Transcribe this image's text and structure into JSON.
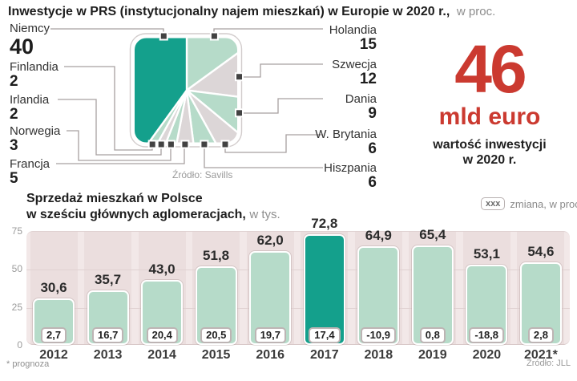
{
  "accent_colors": {
    "teal": "#14a08c",
    "light_green": "#b6dbc9",
    "slice_gray": "#dcd6d7",
    "red": "#cb3a30",
    "plot_background": "#f2e8e8"
  },
  "top_chart": {
    "title": "Inwestycje w PRS (instytucjonalny najem mieszkań) w Europie w 2020 r.,",
    "title_suffix": "w proc.",
    "source": "Źródło: Savills"
  },
  "highlight": {
    "value": "46",
    "unit": "mld euro",
    "caption_line1": "wartość inwestycji",
    "caption_line2": "w 2020 r."
  },
  "bottom_chart": {
    "title_line1": "Sprzedaż mieszkań w Polsce",
    "title_line2": "w sześciu głównych aglomeracjach,",
    "title_suffix": "w tys.",
    "legend_badge": "xxx",
    "legend_label": "zmiana, w proc.",
    "footnote": "* prognoza",
    "source": "Źródło: JLL"
  },
  "chart_data": [
    {
      "type": "pie",
      "title": "Inwestycje w PRS (instytucjonalny najem mieszkań) w Europie w 2020 r.",
      "unit": "w proc.",
      "slices": [
        {
          "label": "Holandia",
          "value": 15,
          "color": "#b6dbc9",
          "side": "right"
        },
        {
          "label": "Szwecja",
          "value": 12,
          "color": "#dcd6d7",
          "side": "right"
        },
        {
          "label": "Dania",
          "value": 9,
          "color": "#b6dbc9",
          "side": "right"
        },
        {
          "label": "W. Brytania",
          "value": 6,
          "color": "#dcd6d7",
          "side": "right"
        },
        {
          "label": "Hiszpania",
          "value": 6,
          "color": "#b6dbc9",
          "side": "right"
        },
        {
          "label": "Francja",
          "value": 5,
          "color": "#dcd6d7",
          "side": "left"
        },
        {
          "label": "Norwegia",
          "value": 3,
          "color": "#b6dbc9",
          "side": "left"
        },
        {
          "label": "Irlandia",
          "value": 2,
          "color": "#dcd6d7",
          "side": "left"
        },
        {
          "label": "Finlandia",
          "value": 2,
          "color": "#b6dbc9",
          "side": "left"
        },
        {
          "label": "Niemcy",
          "value": 40,
          "color": "#14a08c",
          "side": "left"
        }
      ],
      "annotation": "46 mld euro — wartość inwestycji w 2020 r.",
      "source": "Źródło: Savills"
    },
    {
      "type": "bar",
      "title": "Sprzedaż mieszkań w Polsce w sześciu głównych aglomeracjach, w tys.",
      "categories": [
        "2012",
        "2013",
        "2014",
        "2015",
        "2016",
        "2017",
        "2018",
        "2019",
        "2020",
        "2021*"
      ],
      "values": [
        30.6,
        35.7,
        43.0,
        51.8,
        62.0,
        72.8,
        64.9,
        65.4,
        53.1,
        54.6
      ],
      "value_labels": [
        "30,6",
        "35,7",
        "43,0",
        "51,8",
        "62,0",
        "72,8",
        "64,9",
        "65,4",
        "53,1",
        "54,6"
      ],
      "change_percent": [
        2.7,
        16.7,
        20.4,
        20.5,
        19.7,
        17.4,
        -10.9,
        0.8,
        -18.8,
        2.8
      ],
      "change_labels": [
        "2,7",
        "16,7",
        "20,4",
        "20,5",
        "19,7",
        "17,4",
        "-10,9",
        "0,8",
        "-18,8",
        "2,8"
      ],
      "highlight_index": 5,
      "ylim": [
        0,
        75
      ],
      "yticks": [
        75,
        50,
        25,
        0
      ],
      "grid": true,
      "legend": "xxx zmiana, w proc.",
      "footnote": "* prognoza",
      "source": "Źródło: JLL"
    }
  ]
}
